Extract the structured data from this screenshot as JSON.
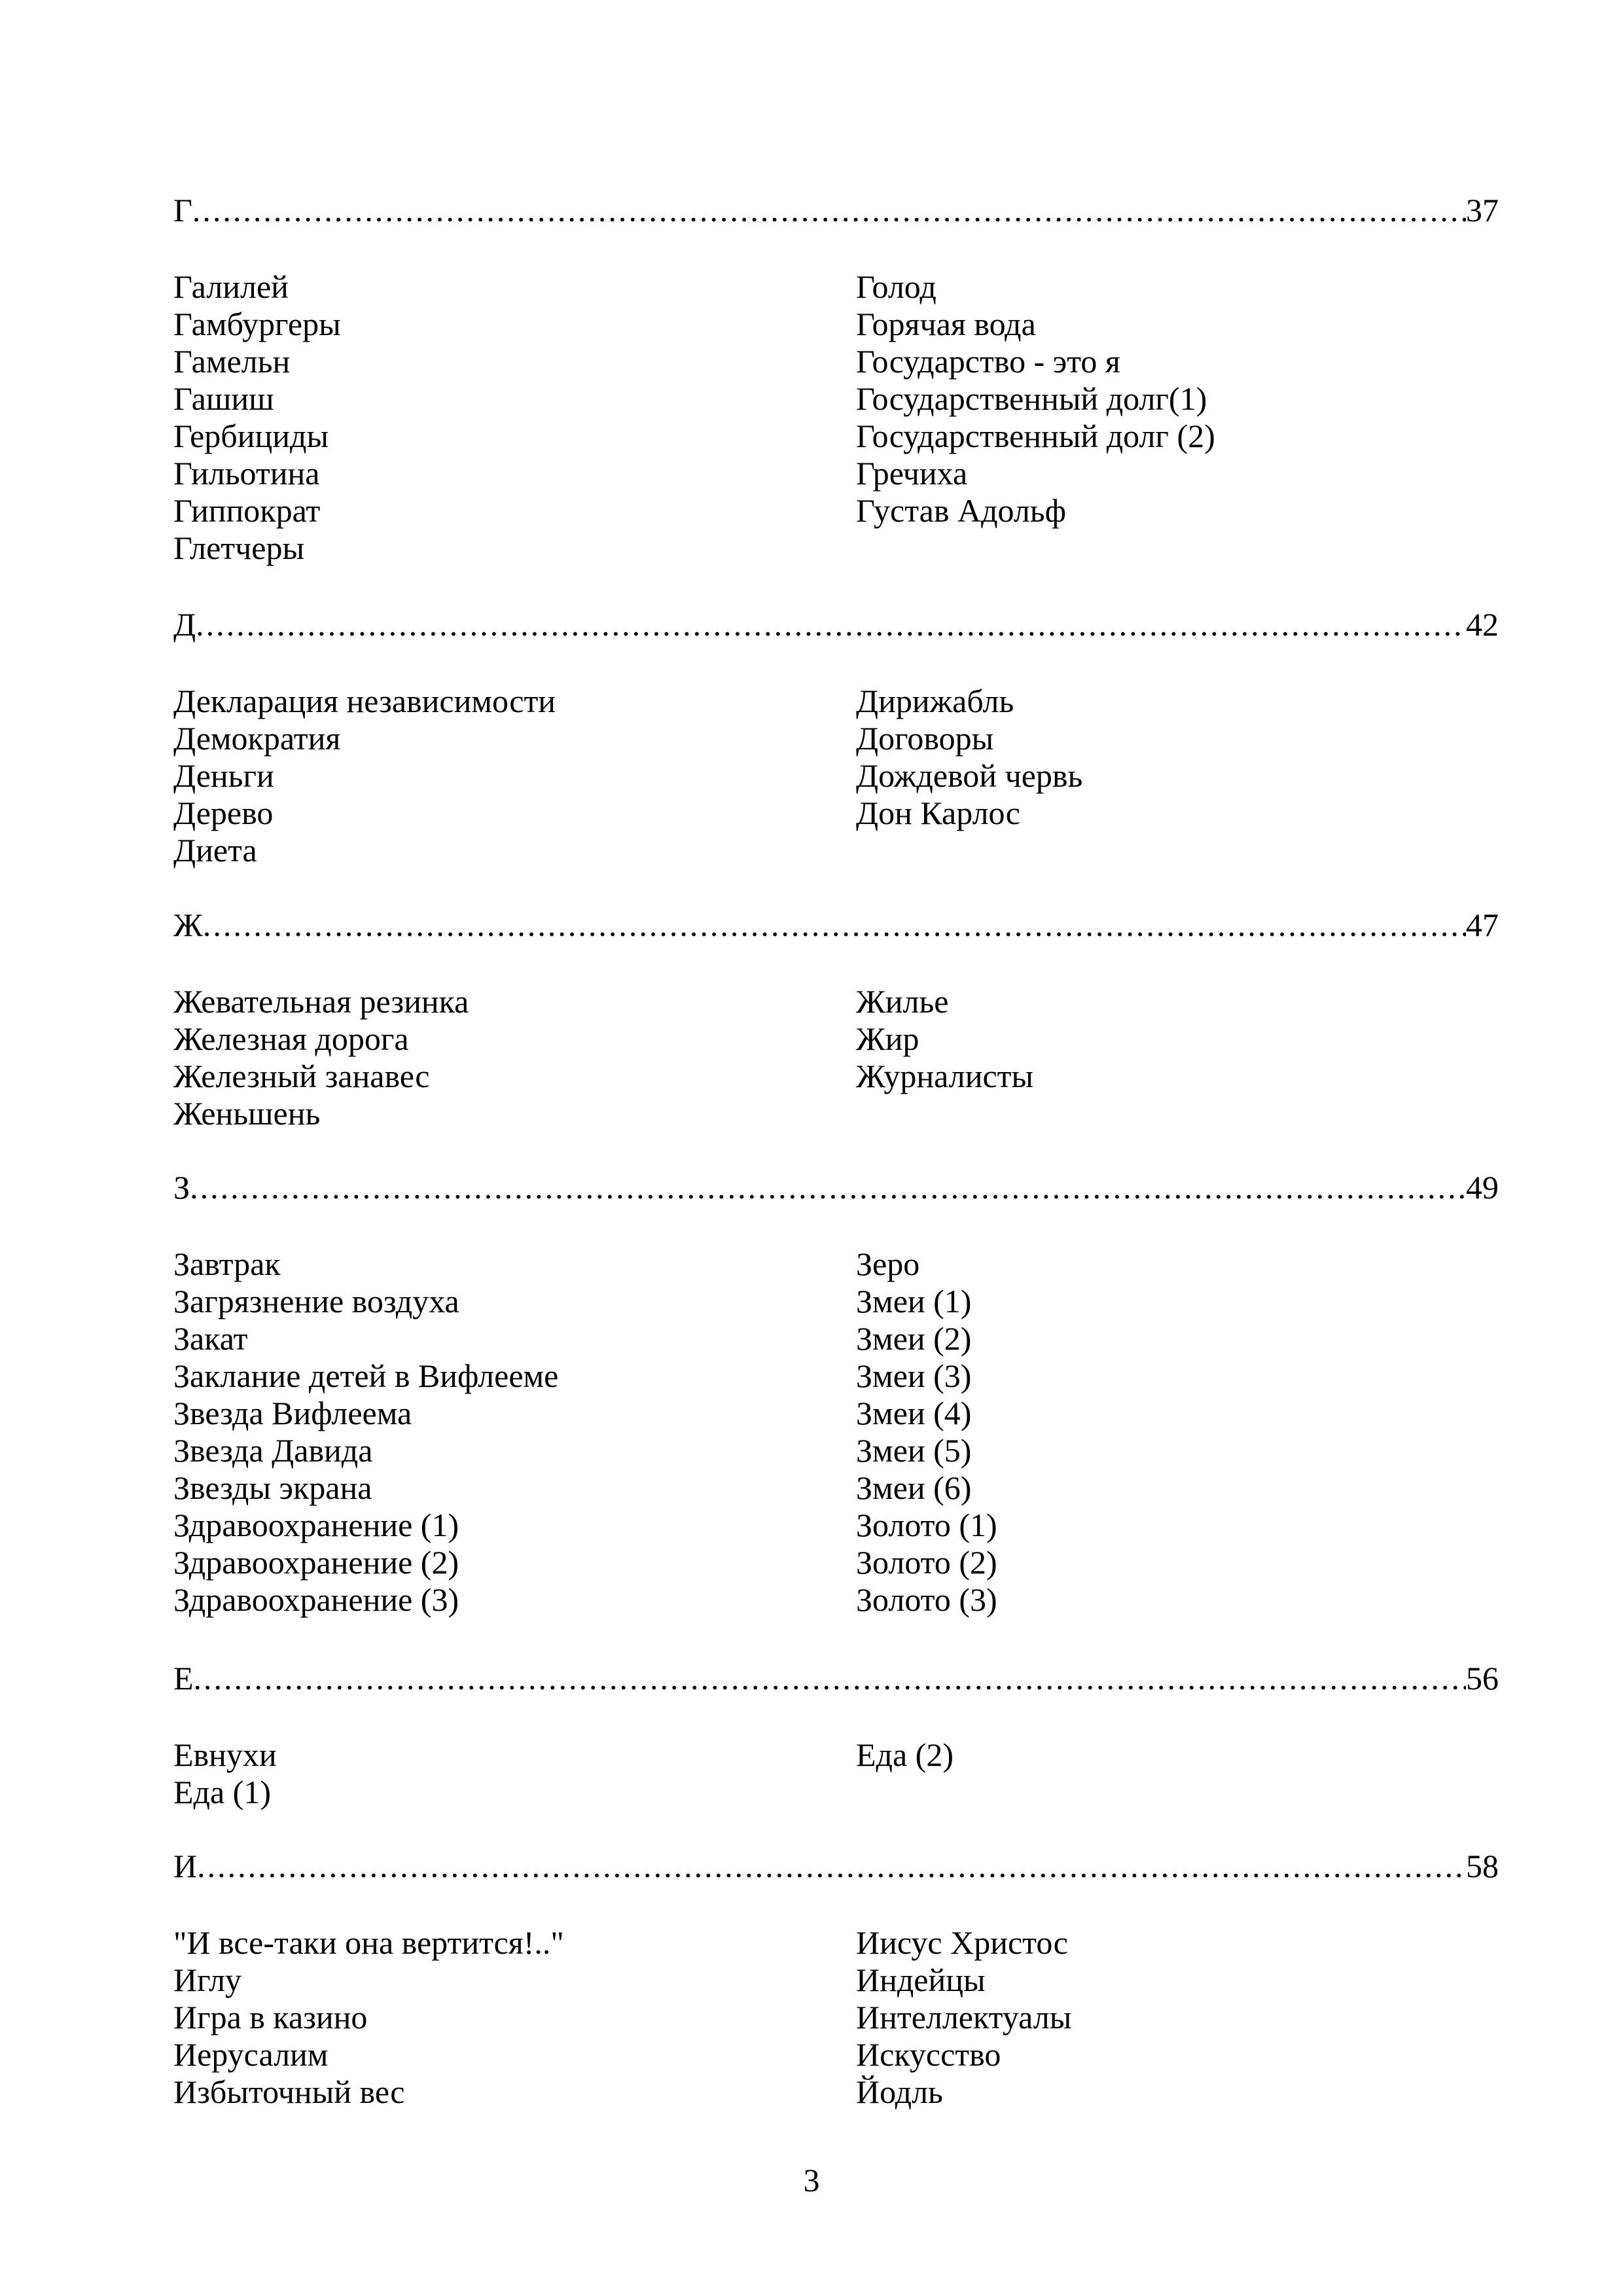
{
  "page": {
    "footer_page_number": "3"
  },
  "toc": {
    "sections": [
      {
        "letter": "Г",
        "page": "37",
        "left": [
          "Галилей",
          "Гамбургеры",
          "Гамельн",
          "Гашиш",
          "Гербициды",
          "Гильотина",
          "Гиппократ",
          "Глетчеры"
        ],
        "right": [
          "Голод",
          "Горячая вода",
          "Государство - это я",
          "Государственный долг(1)",
          "Государственный долг (2)",
          "Гречиха",
          "Густав Адольф"
        ]
      },
      {
        "letter": "Д",
        "page": "42",
        "left": [
          "Декларация независимости",
          "Демократия",
          "Деньги",
          "Дерево",
          "Диета"
        ],
        "right": [
          "Дирижабль",
          "Договоры",
          "Дождевой червь",
          "Дон Карлос"
        ]
      },
      {
        "letter": "Ж",
        "page": "47",
        "left": [
          "Жевательная резинка",
          "Железная дорога",
          "Железный занавес",
          "Женьшень"
        ],
        "right": [
          "Жилье",
          "Жир",
          "Журналисты"
        ]
      },
      {
        "letter": "З",
        "page": "49",
        "left": [
          "Завтрак",
          "Загрязнение воздуха",
          "Закат",
          "Заклание детей в Вифлееме",
          "Звезда Вифлеема",
          "Звезда Давида",
          "Звезды экрана",
          "Здравоохранение (1)",
          "Здравоохранение (2)",
          "Здравоохранение (3)"
        ],
        "right": [
          "Зеро",
          "Змеи (1)",
          "Змеи (2)",
          "Змеи (3)",
          "Змеи (4)",
          "Змеи (5)",
          "Змеи (6)",
          "Золото (1)",
          "Золото (2)",
          "Золото (3)"
        ]
      },
      {
        "letter": "Е",
        "page": "56",
        "left": [
          "Евнухи",
          "Еда (1)"
        ],
        "right": [
          "Еда (2)"
        ]
      },
      {
        "letter": "И",
        "page": "58",
        "left": [
          "\"И все-таки она вертится!..\"",
          "Иглу",
          "Игра в казино",
          "Иерусалим",
          "Избыточный вес"
        ],
        "right": [
          "Иисус Христос",
          "Индейцы",
          "Интеллектуалы",
          "Искусство",
          "Йодль"
        ]
      }
    ]
  }
}
